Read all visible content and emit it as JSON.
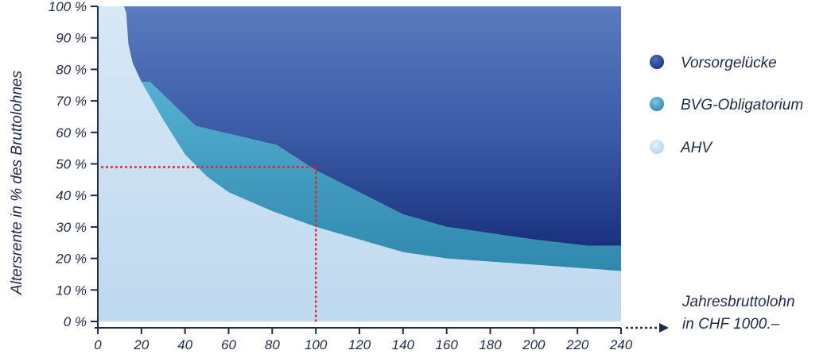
{
  "chart_data": {
    "type": "area",
    "xlabel": "",
    "ylabel": "Altersrente in  % des Bruttolohnes",
    "x_axis_caption": [
      "Jahresbruttolohn",
      "in CHF 1000.–"
    ],
    "xlim": [
      0,
      240
    ],
    "ylim": [
      0,
      100
    ],
    "x_ticks": [
      "0",
      "20",
      "40",
      "60",
      "80",
      "100",
      "120",
      "140",
      "160",
      "180",
      "200",
      "220",
      "240"
    ],
    "y_ticks": [
      "0 %",
      "10 %",
      "20 %",
      "30 %",
      "40 %",
      "50 %",
      "60 %",
      "70 %",
      "80 %",
      "90 %",
      "100 %"
    ],
    "grid": false,
    "legend_position": "right",
    "series": [
      {
        "name": "Vorsorgelücke",
        "color": "#2a4a93",
        "x": [
          13,
          240
        ],
        "upper": [
          100,
          100
        ]
      },
      {
        "name": "BVG-Obligatorium",
        "color": "#3f97bd",
        "x": [
          24,
          45,
          82,
          100,
          140,
          160,
          200,
          225,
          240
        ],
        "upper": [
          76,
          62,
          56,
          48,
          34,
          30,
          26,
          24,
          24
        ]
      },
      {
        "name": "AHV",
        "color": "#c6def1",
        "x": [
          0,
          12,
          13,
          14,
          16,
          20,
          25,
          30,
          40,
          50,
          60,
          80,
          100,
          120,
          140,
          160,
          200,
          240
        ],
        "upper": [
          100,
          100,
          98,
          88,
          82,
          76,
          70,
          64,
          53,
          46,
          41,
          35,
          30,
          26,
          22,
          20,
          18,
          16
        ]
      }
    ],
    "annotations": [
      {
        "type": "dotted-line",
        "x": 100,
        "y": 49,
        "color": "#e2232a"
      },
      {
        "type": "dotted-arrow",
        "from_x": 240,
        "color": "#1f2b4a"
      }
    ]
  }
}
